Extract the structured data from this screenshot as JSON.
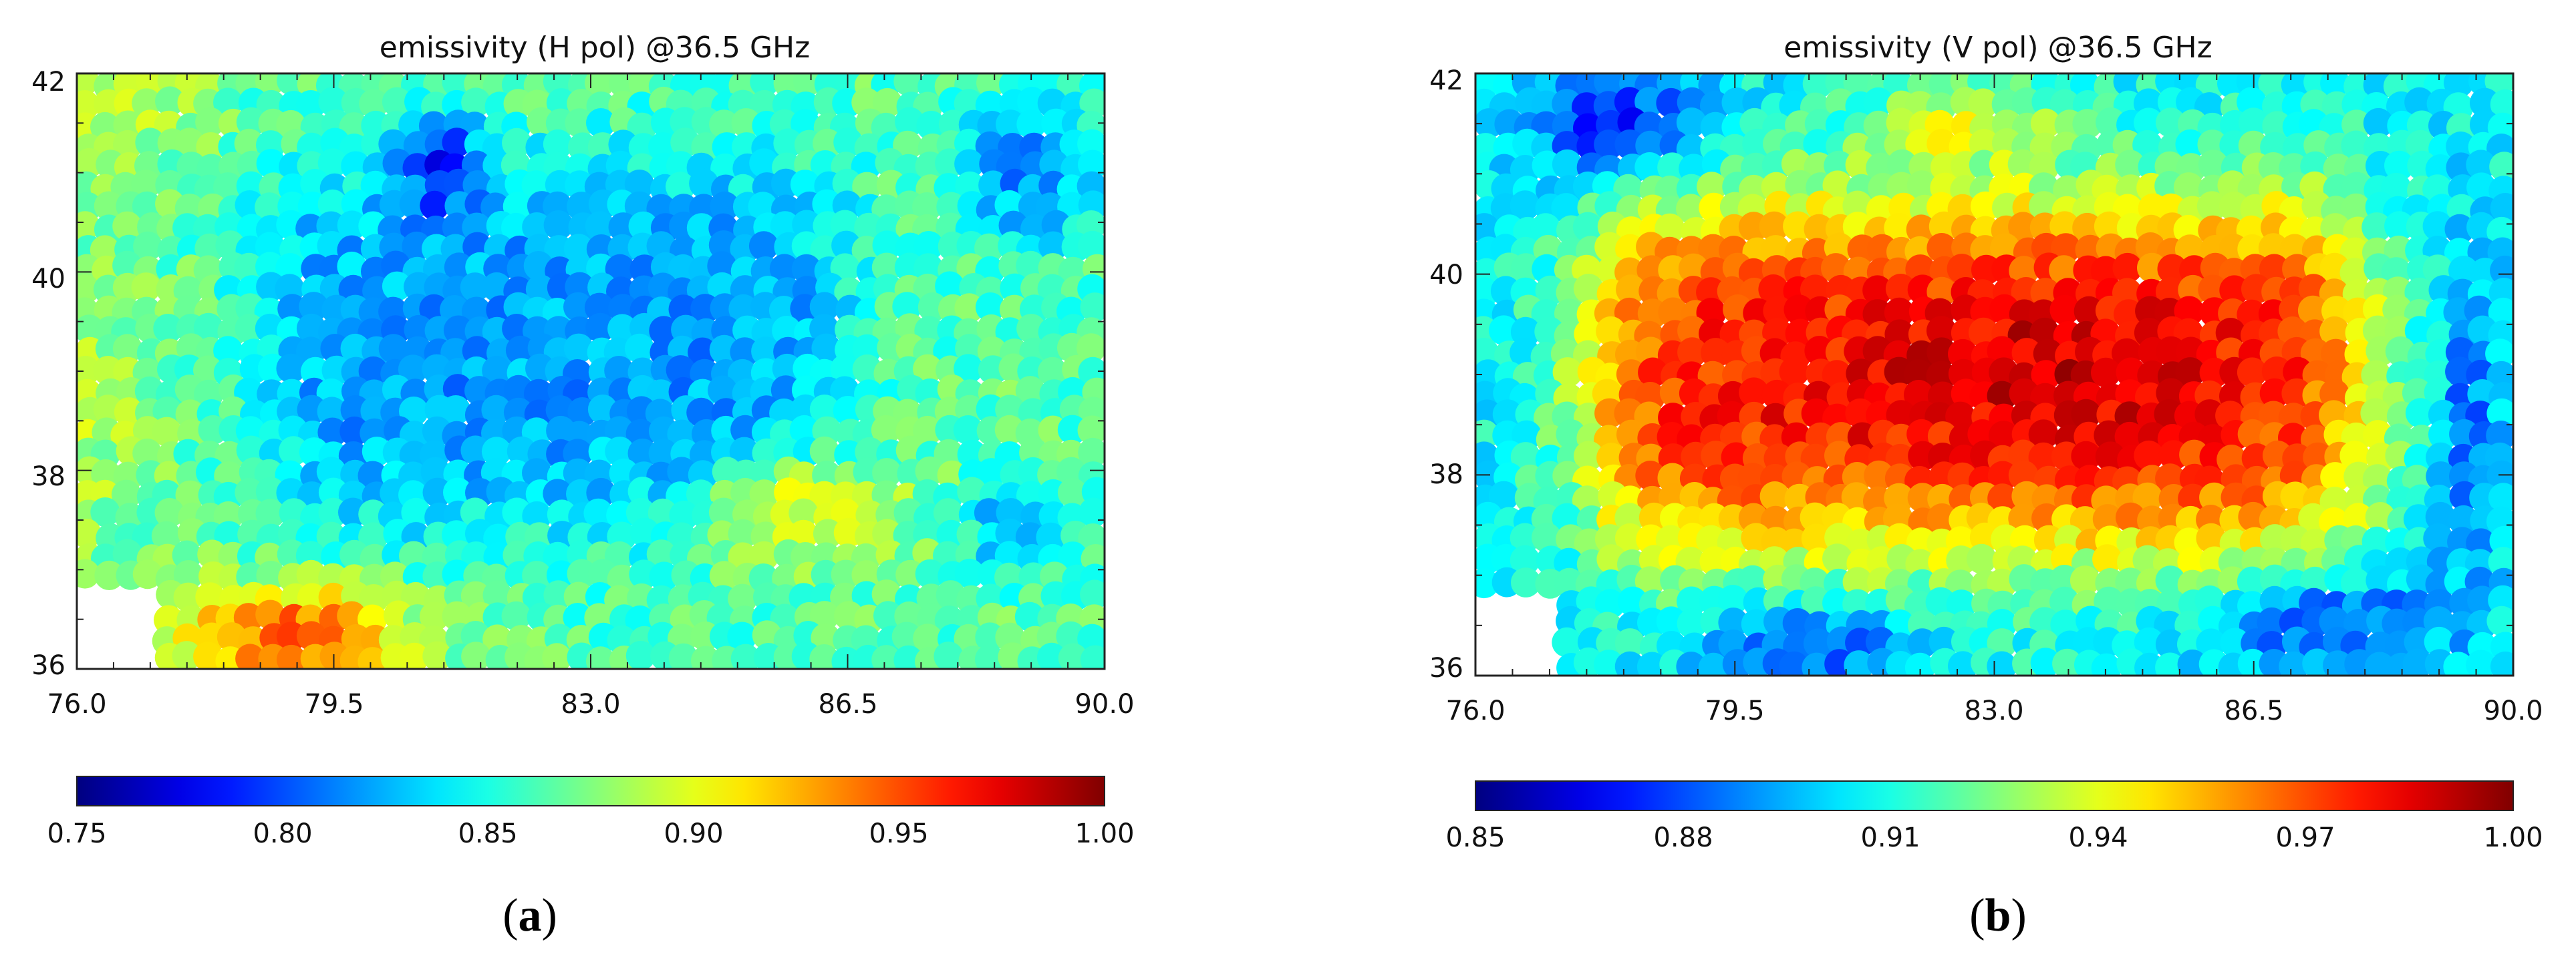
{
  "chart_data": [
    {
      "type": "heatmap",
      "title": "emissivity (H pol) @36.5 GHz",
      "panel_label": {
        "open": "(",
        "letter": "a",
        "close": ")"
      },
      "x_ticks": [
        "76.0",
        "79.5",
        "83.0",
        "86.5",
        "90.0"
      ],
      "y_ticks": [
        "36",
        "38",
        "40",
        "42"
      ],
      "xlim": [
        76.0,
        90.0
      ],
      "ylim": [
        36,
        42
      ],
      "colorbar": {
        "ticks": [
          "0.75",
          "0.80",
          "0.85",
          "0.90",
          "0.95",
          "1.00"
        ],
        "range": [
          0.75,
          1.0
        ],
        "colormap": "jet"
      },
      "field_summary": [
        {
          "region": "basin interior (~78.5-86.5 E, 37.5-41 N)",
          "value": 0.82
        },
        {
          "region": "northern margin (42 N band)",
          "value": 0.86
        },
        {
          "region": "western margin (76-77 E, 37-40 N)",
          "value": 0.88
        },
        {
          "region": "south-west corner (77-81 E, 36-37 N)",
          "value": 0.95
        },
        {
          "region": "south-east (85-88 E, 37-38.5 N)",
          "value": 0.91
        },
        {
          "region": "dark blue patches (north-west, 39.5-41.5 N)",
          "value": 0.76
        }
      ]
    },
    {
      "type": "heatmap",
      "title": "emissivity (V pol) @36.5 GHz",
      "panel_label": {
        "open": "(",
        "letter": "b",
        "close": ")"
      },
      "x_ticks": [
        "76.0",
        "79.5",
        "83.0",
        "86.5",
        "90.0"
      ],
      "y_ticks": [
        "36",
        "38",
        "40",
        "42"
      ],
      "xlim": [
        76.0,
        90.0
      ],
      "ylim": [
        36,
        42
      ],
      "colorbar": {
        "ticks": [
          "0.85",
          "0.88",
          "0.91",
          "0.94",
          "0.97",
          "1.00"
        ],
        "range": [
          0.85,
          1.0
        ],
        "colormap": "jet"
      },
      "field_summary": [
        {
          "region": "basin interior (~78-88 E, 37.5-40.5 N)",
          "value": 0.98
        },
        {
          "region": "northern margin (41-42 N)",
          "value": 0.9
        },
        {
          "region": "western margin (76-77.5 E)",
          "value": 0.93
        },
        {
          "region": "southern margin (36-37 N)",
          "value": 0.89
        },
        {
          "region": "eastern edge (89-90 E)",
          "value": 0.91
        }
      ]
    }
  ]
}
